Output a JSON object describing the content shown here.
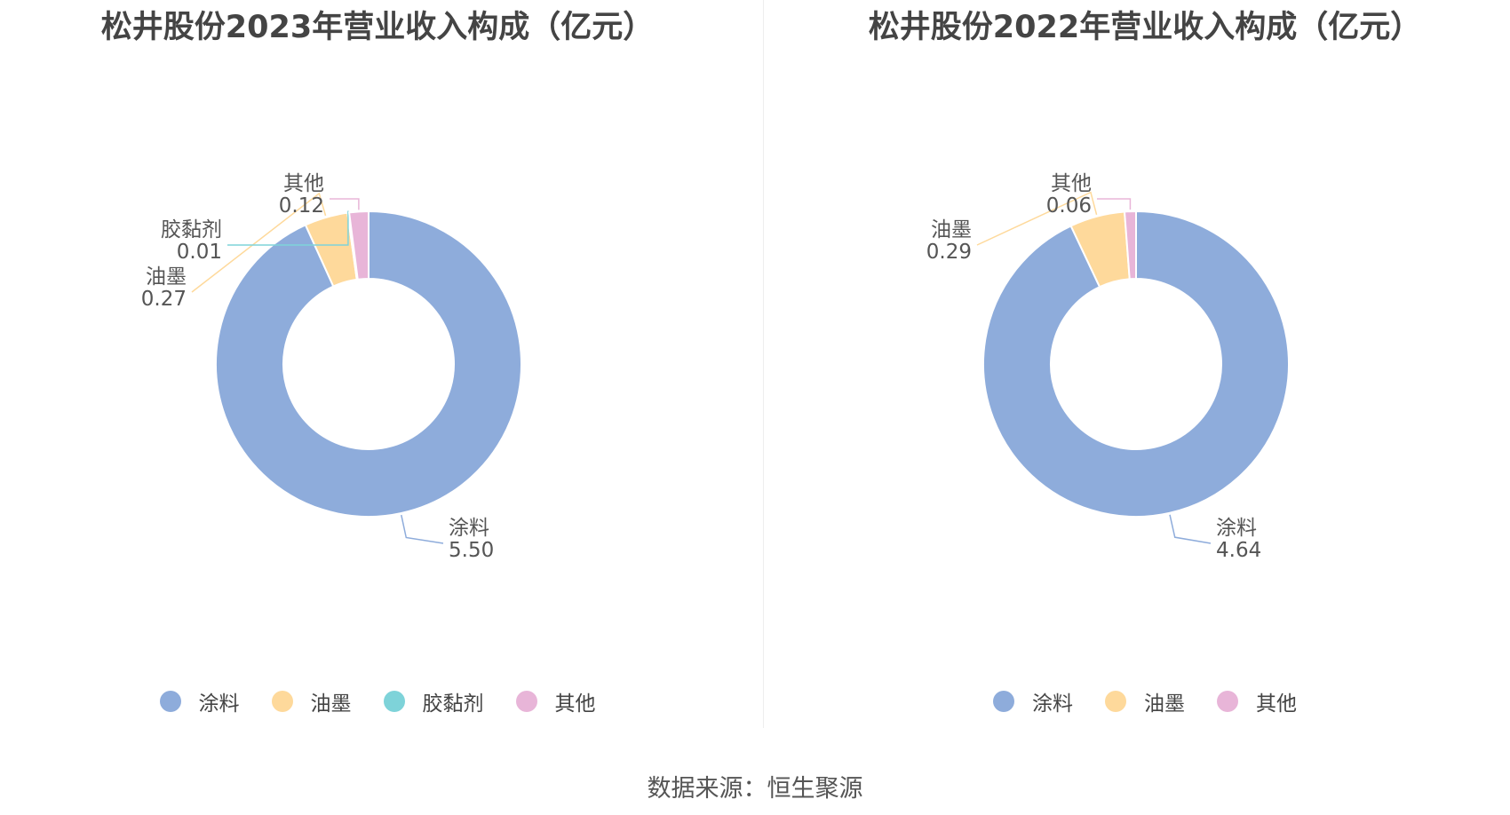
{
  "source": {
    "label": "数据来源：",
    "name": "恒生聚源"
  },
  "chart_data": [
    {
      "type": "pie",
      "title": "松井股份2023年营业收入构成（亿元）",
      "categories": [
        "涂料",
        "油墨",
        "胶黏剂",
        "其他"
      ],
      "values": [
        5.5,
        0.27,
        0.01,
        0.12
      ],
      "value_labels": [
        "5.50",
        "0.27",
        "0.01",
        "0.12"
      ],
      "colors": [
        "#8eacdb",
        "#fed99b",
        "#7ed3d9",
        "#e8b5d8"
      ],
      "legend_position": "bottom"
    },
    {
      "type": "pie",
      "title": "松井股份2022年营业收入构成（亿元）",
      "categories": [
        "涂料",
        "油墨",
        "其他"
      ],
      "values": [
        4.64,
        0.29,
        0.06
      ],
      "value_labels": [
        "4.64",
        "0.29",
        "0.06"
      ],
      "colors": [
        "#8eacdb",
        "#fed99b",
        "#e8b5d8"
      ],
      "legend_position": "bottom"
    }
  ]
}
